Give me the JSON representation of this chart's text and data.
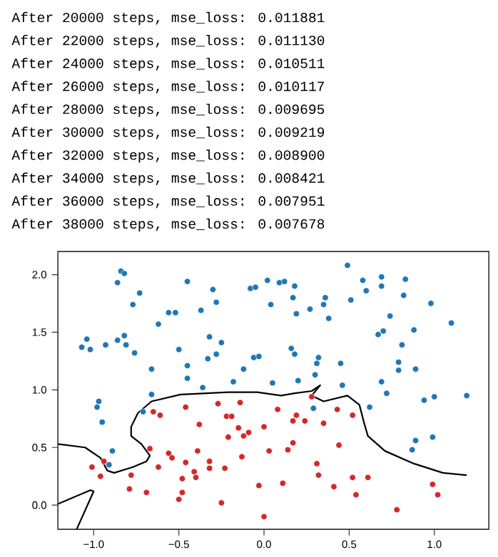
{
  "chart_data": {
    "type": "scatter",
    "marker": "circle",
    "annotations": [
      "After 20000 steps, mse_loss: 0.011881",
      "After 22000 steps, mse_loss: 0.011130",
      "After 24000 steps, mse_loss: 0.010511",
      "After 26000 steps, mse_loss: 0.010117",
      "After 28000 steps, mse_loss: 0.009695",
      "After 30000 steps, mse_loss: 0.009219",
      "After 32000 steps, mse_loss: 0.008900",
      "After 34000 steps, mse_loss: 0.008421",
      "After 36000 steps, mse_loss: 0.007951",
      "After 38000 steps, mse_loss: 0.007678"
    ],
    "xlim": [
      -1.21,
      1.32
    ],
    "ylim": [
      -0.21,
      2.2
    ],
    "xticks": [
      {
        "value": -1,
        "label": "−1.0"
      },
      {
        "value": -0.5,
        "label": "−0.5"
      },
      {
        "value": 0,
        "label": "0.0"
      },
      {
        "value": 0.5,
        "label": "0.5"
      },
      {
        "value": 1,
        "label": "1.0"
      }
    ],
    "yticks": [
      {
        "value": 0,
        "label": "0.0"
      },
      {
        "value": 0.5,
        "label": "0.5"
      },
      {
        "value": 1,
        "label": "1.0"
      },
      {
        "value": 1.5,
        "label": "1.5"
      },
      {
        "value": 2,
        "label": "2.0"
      }
    ],
    "series": [
      {
        "color": "#1f77b4",
        "x": [
          -1.07,
          -1.04,
          -1.02,
          -0.93,
          -0.86,
          -0.82,
          -0.81,
          -0.76,
          -0.86,
          -0.84,
          -0.82,
          -0.77,
          -0.73,
          -0.62,
          -0.56,
          -0.52,
          -0.66,
          -0.66,
          -0.5,
          -0.45,
          -0.45,
          -0.45,
          -0.37,
          -0.36,
          -0.33,
          -0.32,
          -0.3,
          -0.28,
          -0.28,
          -0.25,
          -0.18,
          -0.12,
          -0.08,
          -0.05,
          -0.06,
          -0.03,
          0.02,
          0.04,
          0.05,
          0.09,
          -0.97,
          -0.98,
          0.12,
          0.18,
          0.17,
          0.19,
          0.27,
          0.35,
          0.36,
          0.38,
          0.49,
          0.51,
          0.58,
          0.6,
          0.69,
          0.69,
          0.83,
          0.82,
          0.98,
          1.1,
          0.74,
          0.67,
          0.7,
          0.88,
          0.81,
          0.16,
          0.18,
          0.32,
          0.31,
          0.45,
          0.79,
          0.89,
          0.79,
          0.3,
          0.2,
          0.46,
          0.69,
          0.72,
          0.94,
          1.0,
          1.19,
          0.62,
          0.89,
          0.87,
          0.99,
          0.29,
          -0.95,
          -0.89,
          -0.91,
          -0.71
        ],
        "values": [
          1.37,
          1.44,
          1.35,
          1.39,
          1.43,
          1.47,
          1.39,
          1.32,
          1.93,
          2.03,
          2.01,
          1.74,
          1.84,
          1.57,
          1.67,
          1.67,
          1.18,
          0.96,
          1.35,
          1.94,
          1.21,
          1.1,
          1.69,
          1.02,
          1.27,
          1.46,
          1.87,
          1.31,
          1.76,
          1.41,
          1.07,
          1.18,
          1.88,
          1.89,
          1.28,
          1.29,
          1.95,
          1.74,
          1.06,
          1.93,
          0.9,
          0.85,
          1.94,
          1.9,
          1.8,
          1.66,
          1.7,
          1.74,
          1.8,
          1.62,
          2.08,
          1.78,
          1.95,
          1.86,
          1.98,
          1.9,
          1.96,
          1.82,
          1.75,
          1.58,
          1.64,
          1.48,
          1.51,
          1.52,
          1.39,
          1.36,
          1.31,
          1.28,
          1.23,
          1.23,
          1.24,
          1.18,
          1.17,
          1.13,
          1.08,
          1.04,
          1.07,
          0.97,
          0.91,
          0.94,
          0.95,
          0.85,
          0.56,
          0.48,
          0.59,
          0.84,
          0.72,
          0.47,
          0.35,
          0.81
        ]
      },
      {
        "color": "#d62728",
        "x": [
          -0.65,
          -0.61,
          -0.46,
          -0.27,
          -0.22,
          -0.19,
          -0.14,
          0.08,
          -0.38,
          -0.21,
          -0.12,
          -0.09,
          -0.15,
          0.0,
          0.03,
          -0.13,
          -0.67,
          -0.56,
          -0.54,
          -0.62,
          -0.46,
          -0.39,
          -0.32,
          -0.32,
          -0.23,
          -0.41,
          -0.48,
          -0.4,
          -0.48,
          -0.5,
          -0.25,
          -0.03,
          0.0,
          -0.78,
          -0.79,
          -0.69,
          -0.94,
          -1.01,
          -0.96,
          0.28,
          0.17,
          0.19,
          0.24,
          0.35,
          0.43,
          0.52,
          0.17,
          0.14,
          0.44,
          0.31,
          0.32,
          0.52,
          0.61,
          0.41,
          0.54,
          0.11,
          0.78,
          0.99,
          1.02
        ],
        "values": [
          0.81,
          0.78,
          0.85,
          0.88,
          0.77,
          0.77,
          0.89,
          0.83,
          0.7,
          0.59,
          0.6,
          0.63,
          0.67,
          0.68,
          0.47,
          0.42,
          0.49,
          0.45,
          0.41,
          0.33,
          0.37,
          0.47,
          0.38,
          0.32,
          0.32,
          0.29,
          0.23,
          0.24,
          0.11,
          0.05,
          0.02,
          0.17,
          -0.1,
          0.26,
          0.14,
          0.11,
          0.38,
          0.33,
          0.25,
          0.94,
          0.73,
          0.78,
          0.73,
          0.71,
          0.83,
          0.78,
          0.54,
          0.48,
          0.52,
          0.36,
          0.26,
          0.24,
          0.24,
          0.16,
          0.09,
          0.19,
          -0.04,
          0.18,
          0.09
        ]
      },
      {
        "type": "line",
        "marker": "none",
        "color": "#000000",
        "x": [
          -1.21,
          -1.05,
          -0.96,
          -0.92,
          -0.88,
          -0.77,
          -0.69,
          -0.67,
          -0.72,
          -0.78,
          -0.78,
          -0.74,
          -0.66,
          -0.49,
          -0.21,
          -0.04,
          0.1,
          0.18,
          0.28,
          0.33,
          0.28,
          0.35,
          0.49,
          0.56,
          0.59,
          0.61,
          0.71,
          0.88,
          1.05,
          1.19
        ],
        "values": [
          0.53,
          0.5,
          0.41,
          0.3,
          0.28,
          0.33,
          0.38,
          0.43,
          0.53,
          0.6,
          0.68,
          0.8,
          0.9,
          0.96,
          0.98,
          0.98,
          0.95,
          0.97,
          0.99,
          1.04,
          0.95,
          0.9,
          0.95,
          0.87,
          0.7,
          0.6,
          0.47,
          0.36,
          0.28,
          0.26
        ]
      },
      {
        "type": "line",
        "marker": "none",
        "color": "#000000",
        "x": [
          -1.21,
          -1.02,
          -1.0,
          -1.1
        ],
        "values": [
          0.01,
          0.13,
          0.12,
          -0.21
        ]
      }
    ]
  }
}
